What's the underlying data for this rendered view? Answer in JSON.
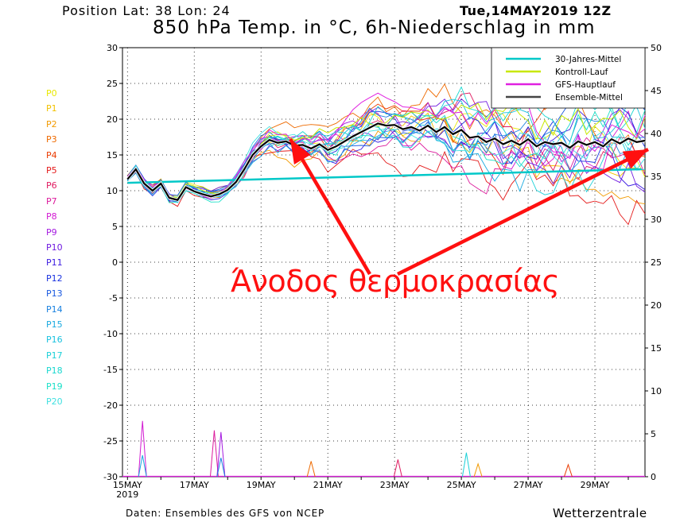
{
  "header": {
    "position": "Position  Lat: 38 Lon: 24",
    "date": "Tue,14MAY2019  12Z",
    "title": "850 hPa Temp. in °C, 6h-Niederschlag in mm"
  },
  "footer": {
    "source": "Daten: Ensembles des GFS von NCEP",
    "brand": "Wetterzentrale"
  },
  "annotation": {
    "text": "Άνοδος θερμοκρασίας",
    "color": "#ff1010"
  },
  "members": {
    "labels": [
      "P0",
      "P1",
      "P2",
      "P3",
      "P4",
      "P5",
      "P6",
      "P7",
      "P8",
      "P9",
      "P10",
      "P11",
      "P12",
      "P13",
      "P14",
      "P15",
      "P16",
      "P17",
      "P18",
      "P19",
      "P20"
    ],
    "colors": [
      "#e8e800",
      "#f2c200",
      "#f29a00",
      "#ee6a00",
      "#ea3a00",
      "#e41a1a",
      "#e01a60",
      "#dc1a9c",
      "#d21ad2",
      "#a41ae0",
      "#701ae0",
      "#3a1ae0",
      "#1a32e0",
      "#1a5ae0",
      "#1a82e0",
      "#1aaae0",
      "#1ac2e0",
      "#1ad0d8",
      "#1ad8d0",
      "#1ae0c8",
      "#40e0e0"
    ]
  },
  "legend": {
    "items": [
      {
        "label": "30-Jahres-Mittel",
        "color": "#00c8c8"
      },
      {
        "label": "Kontroll-Lauf",
        "color": "#c8e800"
      },
      {
        "label": "GFS-Hauptlauf",
        "color": "#e020e0"
      },
      {
        "label": "Ensemble-Mittel",
        "color": "#444444"
      }
    ]
  },
  "chart_data": {
    "type": "line",
    "xlabels": [
      {
        "day": 0,
        "text": "15MAY",
        "sub": "2019"
      },
      {
        "day": 2,
        "text": "17MAY"
      },
      {
        "day": 4,
        "text": "19MAY"
      },
      {
        "day": 6,
        "text": "21MAY"
      },
      {
        "day": 8,
        "text": "23MAY"
      },
      {
        "day": 10,
        "text": "25MAY"
      },
      {
        "day": 12,
        "text": "27MAY"
      },
      {
        "day": 14,
        "text": "29MAY"
      }
    ],
    "xrange_days": [
      -0.15,
      15.5
    ],
    "ylim_left": [
      -30,
      30
    ],
    "yticks_left": [
      30,
      25,
      20,
      15,
      10,
      5,
      0,
      -5,
      -10,
      -15,
      -20,
      -25,
      -30
    ],
    "ylim_right": [
      0,
      50
    ],
    "yticks_right": [
      50,
      45,
      40,
      35,
      30,
      25,
      20,
      15,
      10,
      5,
      0
    ],
    "grid": true,
    "legend_position": "top-right",
    "climatology": {
      "x": [
        0,
        15.4
      ],
      "y": [
        11.1,
        13.0
      ]
    },
    "ensemble_mean": {
      "x": [
        0,
        0.25,
        0.5,
        0.75,
        1,
        1.25,
        1.5,
        1.75,
        2,
        2.25,
        2.5,
        2.75,
        3,
        3.25,
        3.5,
        3.75,
        4,
        4.25,
        4.5,
        4.75,
        5,
        5.25,
        5.5,
        5.75,
        6,
        6.25,
        6.5,
        6.75,
        7,
        7.25,
        7.5,
        7.75,
        8,
        8.25,
        8.5,
        8.75,
        9,
        9.25,
        9.5,
        9.75,
        10,
        10.25,
        10.5,
        10.75,
        11,
        11.25,
        11.5,
        11.75,
        12,
        12.25,
        12.5,
        12.75,
        13,
        13.25,
        13.5,
        13.75,
        14,
        14.25,
        14.5,
        14.75,
        15,
        15.25,
        15.5
      ],
      "y": [
        11.6,
        13.0,
        11.0,
        10.0,
        11.0,
        9.0,
        8.7,
        10.5,
        9.9,
        9.5,
        9.2,
        9.5,
        10.1,
        11.2,
        13.0,
        15.0,
        16.2,
        17.1,
        16.7,
        16.9,
        16.3,
        16.4,
        15.9,
        16.5,
        15.7,
        16.2,
        16.9,
        17.6,
        18.2,
        18.8,
        19.4,
        19.1,
        19.2,
        18.6,
        18.9,
        18.4,
        19.1,
        18.2,
        18.9,
        17.9,
        18.5,
        17.4,
        17.6,
        16.8,
        17.3,
        16.5,
        17.0,
        16.4,
        17.2,
        16.2,
        16.8,
        16.5,
        16.7,
        16.0,
        16.9,
        16.4,
        16.8,
        16.2,
        17.2,
        16.6,
        17.3,
        16.8,
        17.0
      ]
    },
    "ensemble_spread_c": [
      0.6,
      0.8,
      0.9,
      0.9,
      0.9,
      1.0,
      1.1,
      1.2,
      1.3,
      1.5,
      1.7,
      2.0,
      2.2,
      2.4,
      2.6,
      2.8,
      3.0,
      3.2,
      3.4,
      3.6,
      3.8,
      4.0,
      4.2,
      4.4,
      4.6,
      4.8,
      5.0,
      5.2,
      5.4,
      5.6,
      5.8,
      6.0,
      6.2,
      6.4,
      6.6,
      6.8,
      7.0,
      7.2
    ],
    "precip_peaks_mm": [
      {
        "day": 0.45,
        "mm": 6.5,
        "member": "P8"
      },
      {
        "day": 0.45,
        "mm": 2.5,
        "member": "P15"
      },
      {
        "day": 2.6,
        "mm": 5.4,
        "member": "P7"
      },
      {
        "day": 2.8,
        "mm": 5.2,
        "member": "P9"
      },
      {
        "day": 2.8,
        "mm": 2.2,
        "member": "P14"
      },
      {
        "day": 5.5,
        "mm": 1.8,
        "member": "P3"
      },
      {
        "day": 8.1,
        "mm": 2.0,
        "member": "P6"
      },
      {
        "day": 10.15,
        "mm": 2.8,
        "member": "P17"
      },
      {
        "day": 10.5,
        "mm": 1.5,
        "member": "P2"
      },
      {
        "day": 13.2,
        "mm": 1.4,
        "member": "P4"
      }
    ]
  }
}
